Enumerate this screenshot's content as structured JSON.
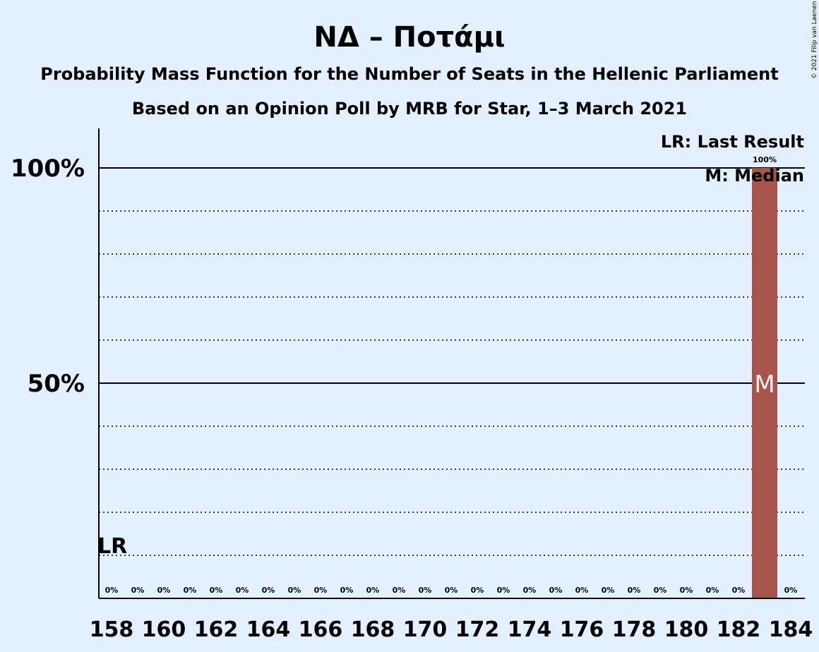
{
  "chart_data": {
    "type": "bar",
    "title": "ΝΔ – Ποτάμι",
    "subtitle": "Probability Mass Function for the Number of Seats in the Hellenic Parliament",
    "subtitle2": "Based on an Opinion Poll by MRB for Star, 1–3 March 2021",
    "x": [
      158,
      159,
      160,
      161,
      162,
      163,
      164,
      165,
      166,
      167,
      168,
      169,
      170,
      171,
      172,
      173,
      174,
      175,
      176,
      177,
      178,
      179,
      180,
      181,
      182,
      183,
      184
    ],
    "values": [
      0,
      0,
      0,
      0,
      0,
      0,
      0,
      0,
      0,
      0,
      0,
      0,
      0,
      0,
      0,
      0,
      0,
      0,
      0,
      0,
      0,
      0,
      0,
      0,
      0,
      100,
      0
    ],
    "data_labels": [
      "0%",
      "0%",
      "0%",
      "0%",
      "0%",
      "0%",
      "0%",
      "0%",
      "0%",
      "0%",
      "0%",
      "0%",
      "0%",
      "0%",
      "0%",
      "0%",
      "0%",
      "0%",
      "0%",
      "0%",
      "0%",
      "0%",
      "0%",
      "0%",
      "0%",
      "100%",
      "0%"
    ],
    "xticks": [
      158,
      160,
      162,
      164,
      166,
      168,
      170,
      172,
      174,
      176,
      178,
      180,
      182,
      184
    ],
    "yticks": [
      {
        "value": 50,
        "label": "50%"
      },
      {
        "value": 100,
        "label": "100%"
      }
    ],
    "minor_grid": [
      10,
      20,
      30,
      40,
      60,
      70,
      80,
      90
    ],
    "ylim": [
      0,
      109
    ],
    "xlim": [
      157.5,
      184.5
    ],
    "last_result": {
      "x": 158,
      "label": "LR"
    },
    "median": {
      "x": 183,
      "label": "M"
    },
    "legend": [
      "LR: Last Result",
      "M: Median"
    ],
    "legend_position": "top-right",
    "bar_color": "#a8544a",
    "copyright": "© 2021 Filip van Laenen"
  }
}
